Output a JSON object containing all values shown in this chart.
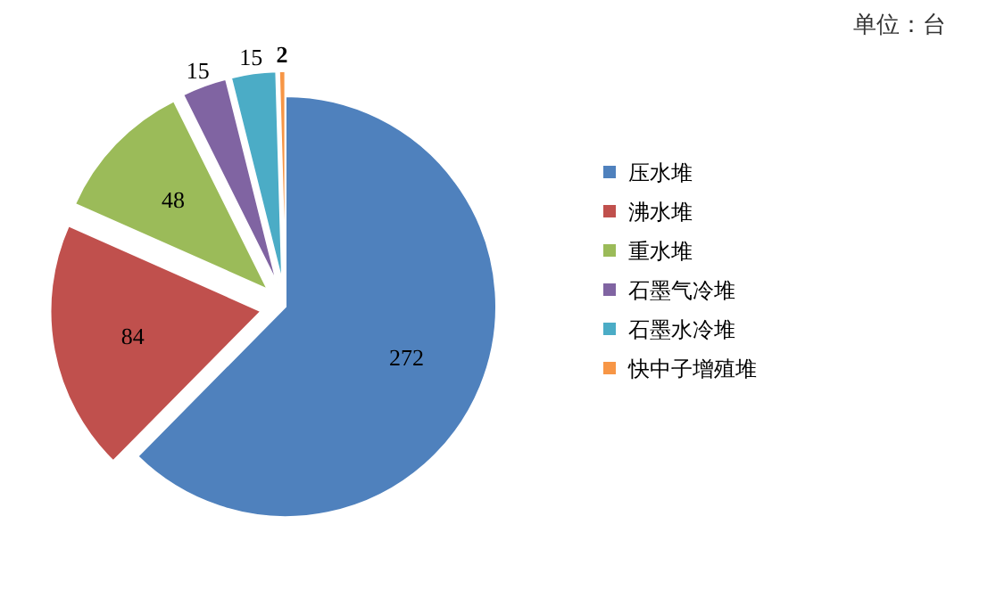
{
  "chart_data": {
    "type": "pie",
    "categories": [
      "压水堆",
      "沸水堆",
      "重水堆",
      "石墨气冷堆",
      "石墨水冷堆",
      "快中子增殖堆"
    ],
    "values": [
      272,
      84,
      48,
      15,
      15,
      2
    ],
    "colors": [
      "#4f81bd",
      "#c0504d",
      "#9bbb59",
      "#8064a2",
      "#4bacc6",
      "#f79646"
    ],
    "data_labels": true,
    "legend": "right",
    "annotations": [
      "单位：台"
    ]
  }
}
